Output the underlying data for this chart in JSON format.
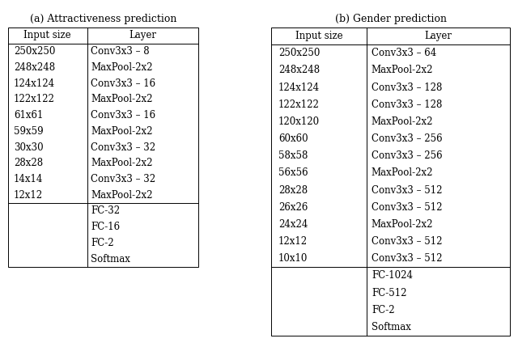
{
  "title_a": "(a) Attractiveness prediction",
  "title_b": "(b) Gender prediction",
  "table_a_header": [
    "Input size",
    "Layer"
  ],
  "table_a_conv_rows": [
    [
      "250x250",
      "Conv3x3 – 8"
    ],
    [
      "248x248",
      "MaxPool-2x2"
    ],
    [
      "124x124",
      "Conv3x3 – 16"
    ],
    [
      "122x122",
      "MaxPool-2x2"
    ],
    [
      "61x61",
      "Conv3x3 – 16"
    ],
    [
      "59x59",
      "MaxPool-2x2"
    ],
    [
      "30x30",
      "Conv3x3 – 32"
    ],
    [
      "28x28",
      "MaxPool-2x2"
    ],
    [
      "14x14",
      "Conv3x3 – 32"
    ],
    [
      "12x12",
      "MaxPool-2x2"
    ]
  ],
  "table_a_fc_rows": [
    [
      "",
      "FC-32"
    ],
    [
      "",
      "FC-16"
    ],
    [
      "",
      "FC-2"
    ],
    [
      "",
      "Softmax"
    ]
  ],
  "table_b_header": [
    "Input size",
    "Layer"
  ],
  "table_b_conv_rows": [
    [
      "250x250",
      "Conv3x3 – 64"
    ],
    [
      "248x248",
      "MaxPool-2x2"
    ],
    [
      "124x124",
      "Conv3x3 – 128"
    ],
    [
      "122x122",
      "Conv3x3 – 128"
    ],
    [
      "120x120",
      "MaxPool-2x2"
    ],
    [
      "60x60",
      "Conv3x3 – 256"
    ],
    [
      "58x58",
      "Conv3x3 – 256"
    ],
    [
      "56x56",
      "MaxPool-2x2"
    ],
    [
      "28x28",
      "Conv3x3 – 512"
    ],
    [
      "26x26",
      "Conv3x3 – 512"
    ],
    [
      "24x24",
      "MaxPool-2x2"
    ],
    [
      "12x12",
      "Conv3x3 – 512"
    ],
    [
      "10x10",
      "Conv3x3 – 512"
    ]
  ],
  "table_b_fc_rows": [
    [
      "",
      "FC-1024"
    ],
    [
      "",
      "FC-512"
    ],
    [
      "",
      "FC-2"
    ],
    [
      "",
      "Softmax"
    ]
  ],
  "font_size": 8.5,
  "title_font_size": 9,
  "bg_color": "#ffffff",
  "text_color": "#000000",
  "line_color": "#000000",
  "fig_width": 6.4,
  "fig_height": 4.29,
  "dpi": 100
}
